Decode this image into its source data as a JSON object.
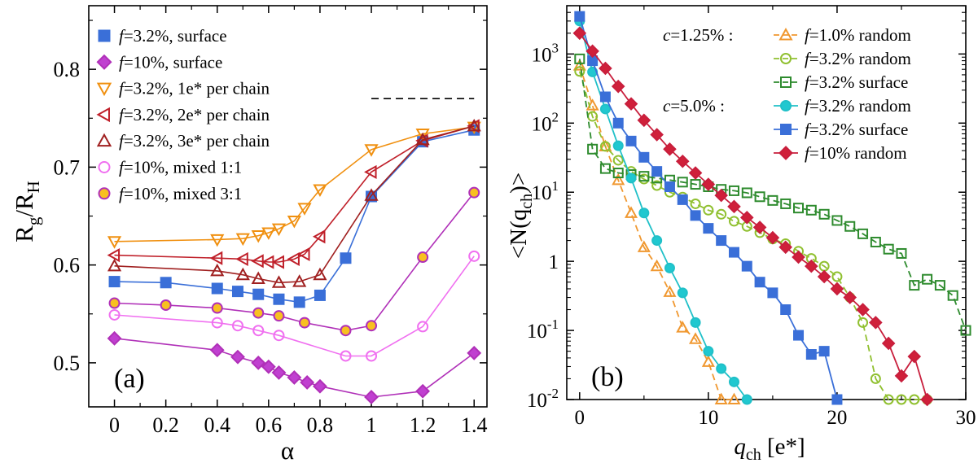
{
  "chart_data": [
    {
      "type": "scatter",
      "panel_label": "(a)",
      "title": "",
      "xlabel": "α",
      "ylabel_main": "R",
      "ylabel_sub1": "g",
      "ylabel_mid": "/R",
      "ylabel_sub2": "H",
      "xlim": [
        -0.1,
        1.45
      ],
      "ylim": [
        0.455,
        0.865
      ],
      "xticks": [
        0,
        0.2,
        0.4,
        0.6,
        0.8,
        1,
        1.2,
        1.4
      ],
      "xtick_labels": [
        "0",
        "0.2",
        "0.4",
        "0.6",
        "0.8",
        "1",
        "1.2",
        "1.4"
      ],
      "yticks": [
        0.5,
        0.6,
        0.7,
        0.8
      ],
      "ytick_labels": [
        "0.5",
        "0.6",
        "0.7",
        "0.8"
      ],
      "legend_placement": "top-left",
      "reference_line": {
        "y": 0.77,
        "x_from": 1.0,
        "x_to": 1.4,
        "style": "dashed"
      },
      "series": [
        {
          "f_label": "f",
          "name": "=3.2%, surface",
          "color": "#3a6fd8",
          "marker": "square",
          "fill": "#3a6fd8",
          "x": [
            0,
            0.2,
            0.4,
            0.48,
            0.56,
            0.64,
            0.72,
            0.8,
            0.9,
            1.0,
            1.2,
            1.4
          ],
          "y": [
            0.583,
            0.582,
            0.576,
            0.573,
            0.57,
            0.565,
            0.562,
            0.569,
            0.607,
            0.67,
            0.726,
            0.738
          ]
        },
        {
          "f_label": "f",
          "name": "=10%,  surface",
          "color": "#b030b8",
          "marker": "diamond",
          "fill": "#c040d0",
          "x": [
            0,
            0.4,
            0.48,
            0.56,
            0.6,
            0.64,
            0.7,
            0.75,
            0.8,
            1.0,
            1.2,
            1.4
          ],
          "y": [
            0.525,
            0.513,
            0.506,
            0.5,
            0.496,
            0.49,
            0.485,
            0.48,
            0.476,
            0.465,
            0.471,
            0.51
          ]
        },
        {
          "f_label": "f",
          "name": "=3.2%, 1e* per chain",
          "color": "#f09010",
          "marker": "triangle-down",
          "fill": "none",
          "x": [
            0,
            0.4,
            0.5,
            0.56,
            0.6,
            0.64,
            0.7,
            0.74,
            0.8,
            1.0,
            1.2,
            1.4
          ],
          "y": [
            0.624,
            0.626,
            0.627,
            0.63,
            0.633,
            0.637,
            0.645,
            0.658,
            0.677,
            0.718,
            0.734,
            0.741
          ]
        },
        {
          "f_label": "f",
          "name": "=3.2%, 2e* per chain",
          "color": "#c0202a",
          "marker": "triangle-left",
          "fill": "none",
          "x": [
            0,
            0.4,
            0.5,
            0.56,
            0.6,
            0.64,
            0.7,
            0.74,
            0.8,
            1.0,
            1.2,
            1.4
          ],
          "y": [
            0.61,
            0.607,
            0.606,
            0.604,
            0.603,
            0.603,
            0.606,
            0.611,
            0.629,
            0.695,
            0.727,
            0.742
          ]
        },
        {
          "f_label": "f",
          "name": "=3.2%, 3e* per chain",
          "color": "#a02020",
          "marker": "triangle-up",
          "fill": "none",
          "x": [
            0,
            0.4,
            0.5,
            0.56,
            0.64,
            0.72,
            0.8,
            1.0,
            1.2,
            1.4
          ],
          "y": [
            0.599,
            0.594,
            0.59,
            0.586,
            0.582,
            0.583,
            0.59,
            0.671,
            0.728,
            0.742
          ]
        },
        {
          "f_label": "f",
          "name": "=10%, mixed 1:1",
          "color": "#f070f0",
          "marker": "circle",
          "fill": "none",
          "x": [
            0,
            0.4,
            0.48,
            0.56,
            0.64,
            0.9,
            1.0,
            1.2,
            1.4
          ],
          "y": [
            0.549,
            0.541,
            0.538,
            0.533,
            0.528,
            0.507,
            0.507,
            0.537,
            0.609
          ]
        },
        {
          "f_label": "f",
          "name": "=10%, mixed 3:1",
          "color": "#b030b8",
          "marker": "circle",
          "fill": "#f8c020",
          "x": [
            0,
            0.2,
            0.4,
            0.56,
            0.64,
            0.74,
            0.9,
            1.0,
            1.2,
            1.4
          ],
          "y": [
            0.561,
            0.559,
            0.556,
            0.551,
            0.548,
            0.541,
            0.533,
            0.538,
            0.608,
            0.674
          ]
        }
      ]
    },
    {
      "type": "line",
      "panel_label": "(b)",
      "title": "",
      "xlabel_main": "q",
      "xlabel_sub": "ch",
      "xlabel_rest": " [e*]",
      "ylabel_main": "<N(q",
      "ylabel_sub": "ch",
      "ylabel_rest": ")>",
      "xlim": [
        -1,
        30
      ],
      "yscale": "log",
      "ylim": [
        0.01,
        5000
      ],
      "xticks": [
        0,
        10,
        20,
        30
      ],
      "xtick_labels": [
        "0",
        "10",
        "20",
        "30"
      ],
      "yticks": [
        0.01,
        0.1,
        1,
        10,
        100,
        1000
      ],
      "ytick_labels": [
        {
          "base": "10",
          "exp": "-2"
        },
        {
          "base": "10",
          "exp": "-1"
        },
        {
          "base": "1",
          "exp": ""
        },
        {
          "base": "10",
          "exp": "1"
        },
        {
          "base": "10",
          "exp": "2"
        },
        {
          "base": "10",
          "exp": "3"
        }
      ],
      "legend_placement": "top-right",
      "group_labels": [
        {
          "c_label": "c",
          "text": "=1.25% :"
        },
        {
          "c_label": "c",
          "text": "=5.0%   :"
        }
      ],
      "series": [
        {
          "f_label": "f",
          "name": "=1.0% random",
          "color": "#f09830",
          "marker": "triangle-up",
          "fill": "none",
          "dash": true,
          "x": [
            0,
            1,
            2,
            3,
            4,
            5,
            6,
            7,
            8,
            9,
            10,
            11,
            12
          ],
          "y": [
            680,
            180,
            46,
            15,
            5,
            1.6,
            0.85,
            0.36,
            0.11,
            0.075,
            0.035,
            0.01,
            0.01
          ]
        },
        {
          "f_label": "f",
          "name": "=3.2% random",
          "color": "#90c030",
          "marker": "circle",
          "fill": "none",
          "dash": true,
          "x": [
            0,
            1,
            2,
            3,
            4,
            5,
            6,
            7,
            8,
            9,
            10,
            11,
            12,
            13,
            14,
            15,
            16,
            17,
            18,
            19,
            20,
            21,
            22,
            23,
            24,
            25,
            26,
            27
          ],
          "y": [
            560,
            125,
            46,
            29,
            20,
            15.5,
            12.5,
            10,
            8.5,
            6.8,
            5.5,
            4.8,
            3.8,
            3.2,
            2.6,
            2.1,
            1.8,
            1.4,
            1.1,
            0.85,
            0.6,
            0.3,
            0.13,
            0.02,
            0.01,
            0.01,
            0.01,
            0.01
          ]
        },
        {
          "f_label": "f",
          "name": "=3.2% surface",
          "color": "#2e8b2e",
          "marker": "square",
          "fill": "none",
          "dash": true,
          "x": [
            0,
            1,
            2,
            3,
            4,
            5,
            6,
            7,
            8,
            9,
            10,
            11,
            12,
            13,
            14,
            15,
            16,
            17,
            18,
            19,
            20,
            21,
            22,
            23,
            24,
            25,
            26,
            27,
            28,
            29,
            30
          ],
          "y": [
            850,
            42,
            22,
            19,
            18,
            17,
            16,
            15,
            14,
            13,
            12,
            11,
            10.5,
            9.8,
            8.6,
            7.6,
            6.8,
            5.9,
            5.5,
            4.8,
            3.9,
            3.2,
            2.5,
            1.9,
            1.5,
            1.3,
            0.45,
            0.55,
            0.45,
            0.32,
            0.1
          ]
        },
        {
          "f_label": "f",
          "name": "=3.2% random",
          "color": "#20c0c8",
          "marker": "circle",
          "fill": "#20c8d0",
          "dash": false,
          "x": [
            0,
            1,
            2,
            3,
            4,
            5,
            6,
            7,
            8,
            9,
            10,
            11,
            12,
            13
          ],
          "y": [
            3000,
            550,
            160,
            47,
            16,
            5,
            2,
            0.8,
            0.35,
            0.13,
            0.05,
            0.028,
            0.018,
            0.01
          ]
        },
        {
          "f_label": "f",
          "name": "=3.2% surface",
          "color": "#3a6fd8",
          "marker": "square",
          "fill": "#3a6fd8",
          "dash": false,
          "x": [
            0,
            1,
            2,
            3,
            4,
            5,
            6,
            7,
            8,
            9,
            10,
            11,
            12,
            13,
            14,
            15,
            16,
            17,
            18,
            19,
            20
          ],
          "y": [
            3500,
            800,
            240,
            100,
            55,
            32,
            20,
            12,
            7.8,
            4.6,
            3,
            2,
            1.35,
            0.85,
            0.5,
            0.35,
            0.2,
            0.085,
            0.045,
            0.05,
            0.01
          ]
        },
        {
          "f_label": "f",
          "name": "=10% random",
          "color": "#c81e3c",
          "marker": "diamond",
          "fill": "#d0203a",
          "dash": false,
          "x": [
            0,
            1,
            2,
            3,
            4,
            5,
            6,
            7,
            8,
            9,
            10,
            11,
            12,
            13,
            14,
            15,
            16,
            17,
            18,
            19,
            20,
            21,
            22,
            23,
            24,
            25,
            26,
            27
          ],
          "y": [
            2000,
            1100,
            620,
            340,
            190,
            110,
            68,
            42,
            28,
            19,
            13,
            9,
            6.2,
            4.3,
            3.1,
            2.2,
            1.6,
            1.15,
            0.85,
            0.6,
            0.4,
            0.3,
            0.2,
            0.13,
            0.065,
            0.022,
            0.042,
            0.01
          ]
        }
      ]
    }
  ]
}
